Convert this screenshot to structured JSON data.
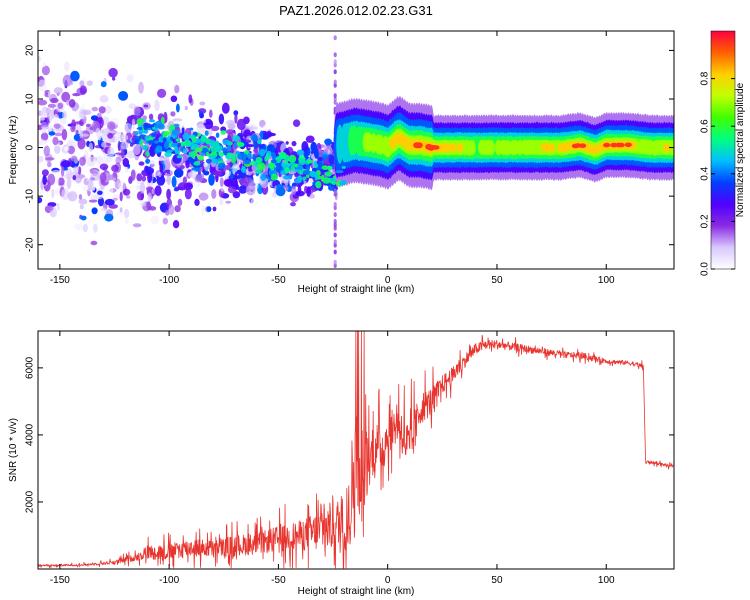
{
  "figure": {
    "title": "PAZ1.2026.012.02.23.G31"
  },
  "chart_data": [
    {
      "type": "heatmap",
      "title": "PAZ1.2026.012.02.23.G31",
      "xlabel": "Height of straight line (km)",
      "ylabel": "Frequency (Hz)",
      "xlim": [
        -160,
        131
      ],
      "ylim": [
        -25,
        24
      ],
      "xticks": [
        -150,
        -100,
        -50,
        0,
        50,
        100
      ],
      "yticks": [
        -20,
        -10,
        0,
        10,
        20
      ],
      "colorbar": {
        "label": "Normalized spectral amplitude",
        "range": [
          0,
          1
        ],
        "ticks": [
          "0.0",
          "0.2",
          "0.4",
          "0.6",
          "0.8"
        ],
        "colors": [
          "#ffffff",
          "#d8c8ff",
          "#8a2be2",
          "#5000ff",
          "#0040ff",
          "#00c0ff",
          "#00ff80",
          "#40ff00",
          "#c0ff00",
          "#ffd000",
          "#ff6000",
          "#ff0040"
        ]
      },
      "features": {
        "scatter_region_km": [
          -160,
          -23
        ],
        "central_band_km": [
          -23,
          131
        ],
        "central_band_freq_hz": 0,
        "cutoff_line_km": -24
      },
      "band_profile": {
        "x": [
          -23,
          -15,
          -8,
          -2,
          0,
          5,
          10,
          15,
          20,
          40,
          60,
          80,
          88,
          95,
          100,
          110,
          120,
          131
        ],
        "freq": [
          0.5,
          1.5,
          1.0,
          0.5,
          0,
          2.0,
          0.5,
          0.5,
          0,
          0,
          0,
          0,
          0.5,
          -0.5,
          0.5,
          0.5,
          0,
          0
        ],
        "amp": [
          0.4,
          0.6,
          0.7,
          0.7,
          0.8,
          0.8,
          0.85,
          0.9,
          0.95,
          0.7,
          0.7,
          0.8,
          0.98,
          0.85,
          0.95,
          0.9,
          0.7,
          0.8
        ]
      }
    },
    {
      "type": "line",
      "xlabel": "Height of straight line (km)",
      "ylabel": "SNR (10 * v/v)",
      "xlim": [
        -160,
        131
      ],
      "ylim": [
        0,
        7100
      ],
      "xticks": [
        -150,
        -100,
        -50,
        0,
        50,
        100
      ],
      "yticks": [
        2000,
        4000,
        6000
      ],
      "line_color": "#e8342e",
      "series": [
        {
          "name": "SNR",
          "x": [
            -160,
            -140,
            -125,
            -115,
            -110,
            -100,
            -90,
            -80,
            -70,
            -60,
            -50,
            -40,
            -30,
            -25,
            -20,
            -18,
            -16,
            -14,
            -12,
            -10,
            -8,
            -5,
            -2,
            0,
            5,
            10,
            15,
            20,
            25,
            30,
            35,
            40,
            45,
            50,
            55,
            60,
            70,
            80,
            90,
            100,
            110,
            117,
            118,
            119,
            125,
            131
          ],
          "values": [
            100,
            120,
            200,
            350,
            500,
            500,
            650,
            600,
            700,
            750,
            900,
            1000,
            1150,
            1300,
            1300,
            1700,
            2500,
            3000,
            2000,
            3000,
            3300,
            3700,
            3600,
            4000,
            4400,
            3500,
            4800,
            5000,
            5500,
            5800,
            6200,
            6550,
            6700,
            6700,
            6650,
            6600,
            6500,
            6400,
            6350,
            6200,
            6150,
            6050,
            3150,
            3200,
            3130,
            3050
          ],
          "noise_amplitude": [
            40,
            40,
            80,
            150,
            300,
            350,
            400,
            350,
            450,
            450,
            550,
            650,
            900,
            1100,
            1300,
            1600,
            2500,
            2600,
            1200,
            1500,
            1000,
            1000,
            1000,
            800,
            900,
            1200,
            700,
            600,
            400,
            350,
            300,
            250,
            200,
            200,
            180,
            160,
            150,
            130,
            130,
            100,
            90,
            90,
            60,
            60,
            60,
            60
          ]
        }
      ]
    }
  ]
}
